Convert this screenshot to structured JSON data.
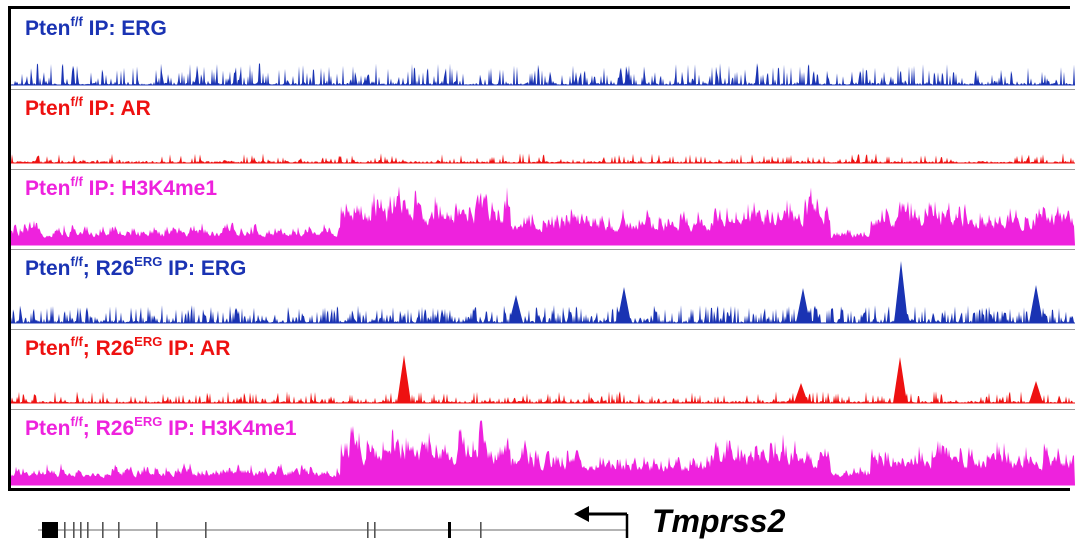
{
  "tracks": [
    {
      "pre": "Pten",
      "sup1": "f/f",
      "mid": "",
      "sup2": "",
      "post": " IP: ERG",
      "color": "#1a33b3",
      "signal": "sparse-low"
    },
    {
      "pre": "Pten",
      "sup1": "f/f",
      "mid": "",
      "sup2": "",
      "post": " IP: AR",
      "color": "#ee1111",
      "signal": "sparse-very-low"
    },
    {
      "pre": "Pten",
      "sup1": "f/f",
      "mid": "",
      "sup2": "",
      "post": " IP: H3K4me1",
      "color": "#ee22dd",
      "signal": "broad-dense"
    },
    {
      "pre": "Pten",
      "sup1": "f/f",
      "mid": "; R26",
      "sup2": "ERG",
      "post": " IP: ERG",
      "color": "#1a33b3",
      "signal": "dense-with-peaks"
    },
    {
      "pre": "Pten",
      "sup1": "f/f",
      "mid": "; R26",
      "sup2": "ERG",
      "post": " IP: AR",
      "color": "#ee1111",
      "signal": "sparse-with-peaks"
    },
    {
      "pre": "Pten",
      "sup1": "f/f",
      "mid": "; R26",
      "sup2": "ERG",
      "post": " IP: H3K4me1",
      "color": "#ee22dd",
      "signal": "broad-dense"
    }
  ],
  "gene": {
    "name": "Tmprss2",
    "strand": "reverse",
    "colors": {
      "line": "#9a9a9a",
      "exon": "#000000",
      "arrow": "#000000"
    }
  }
}
